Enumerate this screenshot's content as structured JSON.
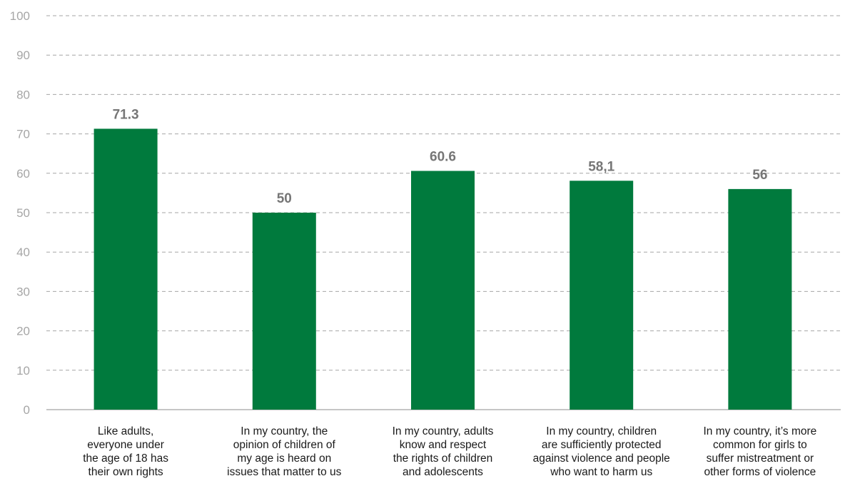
{
  "colors": {
    "bar": "#007a3d",
    "grid": "#a6a6a6",
    "tick": "#a6a6a6",
    "data_label": "#767676"
  },
  "chart_data": {
    "type": "bar",
    "ylim": [
      0,
      100
    ],
    "yticks": [
      "0",
      "10",
      "20",
      "30",
      "40",
      "50",
      "60",
      "70",
      "80",
      "90",
      "100"
    ],
    "grid": true,
    "categories": [
      [
        "Like adults,",
        "everyone under",
        "the age of 18 has",
        "their own rights"
      ],
      [
        "In my country, the",
        "opinion of children of",
        "my age is heard on",
        "issues that matter to us"
      ],
      [
        "In my country, adults",
        "know and respect",
        "the rights of children",
        "and adolescents"
      ],
      [
        "In my country, children",
        "are sufficiently protected",
        "against violence and people",
        "who want to harm us"
      ],
      [
        "In my country, it’s more",
        "common for girls to",
        "suffer mistreatment or",
        "other forms of violence"
      ]
    ],
    "values": [
      71.3,
      50,
      60.6,
      58.1,
      56
    ],
    "data_labels": [
      "71.3",
      "50",
      "60.6",
      "58,1",
      "56"
    ]
  }
}
